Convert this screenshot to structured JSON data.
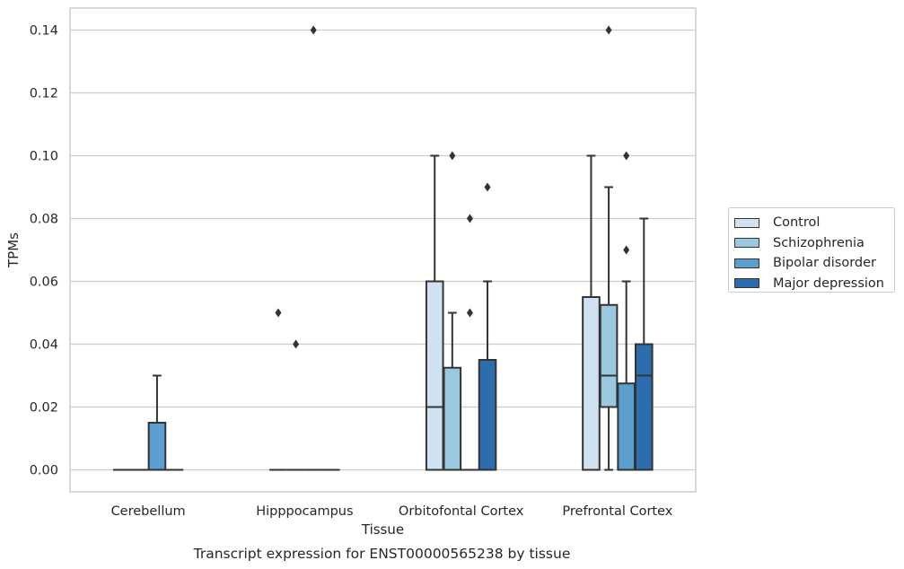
{
  "chart_data": {
    "type": "box",
    "caption": "Transcript expression for ENST00000565238 by tissue",
    "xlabel": "Tissue",
    "ylabel": "TPMs",
    "categories": [
      "Cerebellum",
      "Hipppocampus",
      "Orbitofontal Cortex",
      "Prefrontal Cortex"
    ],
    "ylim": [
      -0.007,
      0.147
    ],
    "yticks": [
      "0.00",
      "0.02",
      "0.04",
      "0.06",
      "0.08",
      "0.10",
      "0.12",
      "0.14"
    ],
    "grid": "horizontal",
    "legend_position": "right",
    "series": [
      {
        "name": "Control",
        "color": "#d0e1f2",
        "boxes": [
          {
            "category": "Cerebellum",
            "q1": 0.0,
            "median": 0.0,
            "q3": 0.0,
            "whisker_low": 0.0,
            "whisker_high": 0.0,
            "outliers": []
          },
          {
            "category": "Hipppocampus",
            "q1": 0.0,
            "median": 0.0,
            "q3": 0.0,
            "whisker_low": 0.0,
            "whisker_high": 0.0,
            "outliers": [
              0.05
            ]
          },
          {
            "category": "Orbitofontal Cortex",
            "q1": 0.0,
            "median": 0.02,
            "q3": 0.06,
            "whisker_low": 0.0,
            "whisker_high": 0.1,
            "outliers": []
          },
          {
            "category": "Prefrontal Cortex",
            "q1": 0.0,
            "median": 0.0,
            "q3": 0.055,
            "whisker_low": 0.0,
            "whisker_high": 0.1,
            "outliers": []
          }
        ]
      },
      {
        "name": "Schizophrenia",
        "color": "#9ac8e0",
        "boxes": [
          {
            "category": "Cerebellum",
            "q1": 0.0,
            "median": 0.0,
            "q3": 0.0,
            "whisker_low": 0.0,
            "whisker_high": 0.0,
            "outliers": []
          },
          {
            "category": "Hipppocampus",
            "q1": 0.0,
            "median": 0.0,
            "q3": 0.0,
            "whisker_low": 0.0,
            "whisker_high": 0.0,
            "outliers": [
              0.04
            ]
          },
          {
            "category": "Orbitofontal Cortex",
            "q1": 0.0,
            "median": 0.0,
            "q3": 0.0325,
            "whisker_low": 0.0,
            "whisker_high": 0.05,
            "outliers": [
              0.1
            ]
          },
          {
            "category": "Prefrontal Cortex",
            "q1": 0.02,
            "median": 0.03,
            "q3": 0.0525,
            "whisker_low": 0.0,
            "whisker_high": 0.09,
            "outliers": [
              0.14
            ]
          }
        ]
      },
      {
        "name": "Bipolar disorder",
        "color": "#5a9fcf",
        "boxes": [
          {
            "category": "Cerebellum",
            "q1": 0.0,
            "median": 0.0,
            "q3": 0.015,
            "whisker_low": 0.0,
            "whisker_high": 0.03,
            "outliers": []
          },
          {
            "category": "Hipppocampus",
            "q1": 0.0,
            "median": 0.0,
            "q3": 0.0,
            "whisker_low": 0.0,
            "whisker_high": 0.0,
            "outliers": [
              0.14
            ]
          },
          {
            "category": "Orbitofontal Cortex",
            "q1": 0.0,
            "median": 0.0,
            "q3": 0.0,
            "whisker_low": 0.0,
            "whisker_high": 0.0,
            "outliers": [
              0.05,
              0.08
            ]
          },
          {
            "category": "Prefrontal Cortex",
            "q1": 0.0,
            "median": 0.0,
            "q3": 0.0275,
            "whisker_low": 0.0,
            "whisker_high": 0.06,
            "outliers": [
              0.07,
              0.1
            ]
          }
        ]
      },
      {
        "name": "Major depression",
        "color": "#2c6ead",
        "boxes": [
          {
            "category": "Cerebellum",
            "q1": 0.0,
            "median": 0.0,
            "q3": 0.0,
            "whisker_low": 0.0,
            "whisker_high": 0.0,
            "outliers": []
          },
          {
            "category": "Hipppocampus",
            "q1": 0.0,
            "median": 0.0,
            "q3": 0.0,
            "whisker_low": 0.0,
            "whisker_high": 0.0,
            "outliers": []
          },
          {
            "category": "Orbitofontal Cortex",
            "q1": 0.0,
            "median": 0.0,
            "q3": 0.035,
            "whisker_low": 0.0,
            "whisker_high": 0.06,
            "outliers": [
              0.09
            ]
          },
          {
            "category": "Prefrontal Cortex",
            "q1": 0.0,
            "median": 0.03,
            "q3": 0.04,
            "whisker_low": 0.0,
            "whisker_high": 0.08,
            "outliers": []
          }
        ]
      }
    ]
  }
}
